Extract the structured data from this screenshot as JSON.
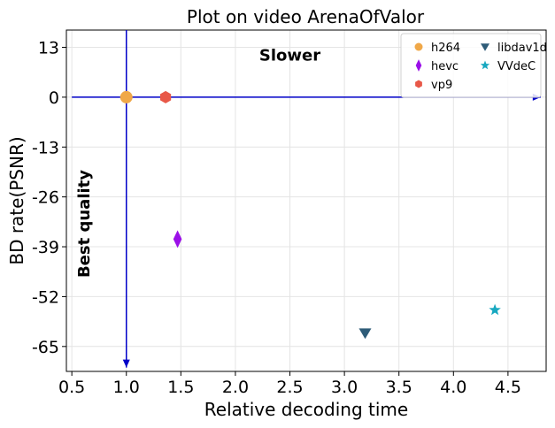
{
  "chart_data": {
    "type": "scatter",
    "title": "Plot on video ArenaOfValor",
    "xlabel": "Relative decoding time",
    "ylabel": "BD rate(PSNR)",
    "xlim": [
      0.45,
      4.85
    ],
    "ylim": [
      -71.5,
      17.5
    ],
    "xticks": [
      0.5,
      1.0,
      1.5,
      2.0,
      2.5,
      3.0,
      3.5,
      4.0,
      4.5
    ],
    "xtick_labels": [
      "0.5",
      "1.0",
      "1.5",
      "2.0",
      "2.5",
      "3.0",
      "3.5",
      "4.0",
      "4.5"
    ],
    "yticks": [
      13,
      0,
      -13,
      -26,
      -39,
      -52,
      -65
    ],
    "ytick_labels": [
      "13",
      "0",
      "-13",
      "-26",
      "-39",
      "-52",
      "-65"
    ],
    "grid": true,
    "legend_position": "top-right",
    "series": [
      {
        "name": "h264",
        "marker": "circle",
        "color": "#f0a848",
        "x": 1.0,
        "y": 0.0
      },
      {
        "name": "hevc",
        "marker": "thin-diamond",
        "color": "#9b10e8",
        "x": 1.47,
        "y": -37.0
      },
      {
        "name": "vp9",
        "marker": "hexagon",
        "color": "#e85848",
        "x": 1.36,
        "y": 0.0
      },
      {
        "name": "libdav1d",
        "marker": "triangle-down",
        "color": "#2e5c78",
        "x": 3.19,
        "y": -61.5
      },
      {
        "name": "VVdeC",
        "marker": "star",
        "color": "#18a8c0",
        "x": 4.38,
        "y": -55.5
      }
    ],
    "annotations": [
      {
        "text": "Slower",
        "x": 2.5,
        "y": 9.5
      },
      {
        "text": "Best quality",
        "x": 0.66,
        "y": -33.0,
        "rotation": -90
      }
    ],
    "arrows": [
      {
        "from": [
          0.5,
          0.0
        ],
        "to": [
          4.8,
          0.0
        ],
        "color": "#0000c8"
      },
      {
        "from": [
          1.0,
          17.5
        ],
        "to": [
          1.0,
          -70.5
        ],
        "color": "#0000c8"
      }
    ]
  }
}
